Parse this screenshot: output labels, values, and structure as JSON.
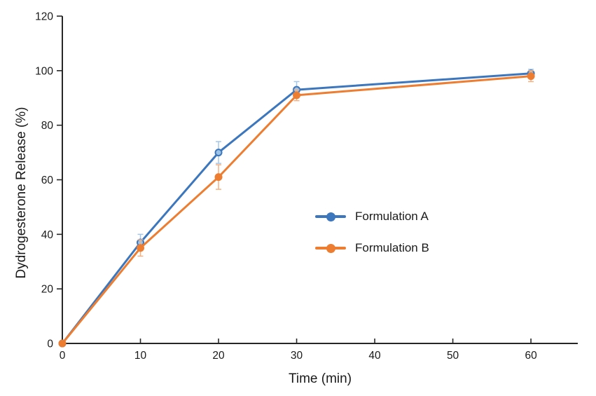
{
  "chart_data": {
    "type": "line",
    "title": "",
    "xlabel": "Time (min)",
    "ylabel": "Dydrogesterone Release (%)",
    "x": [
      0,
      10,
      20,
      30,
      60
    ],
    "xlim": [
      0,
      66
    ],
    "ylim": [
      0,
      120
    ],
    "xticks": [
      0,
      10,
      20,
      30,
      40,
      50,
      60
    ],
    "yticks": [
      0,
      20,
      40,
      60,
      80,
      100,
      120
    ],
    "grid": false,
    "legend_position": "inside-center-right",
    "axis_color": "#262626",
    "text_color": "#1a1a1a",
    "series": [
      {
        "name": "Formulation A",
        "color": "#3C77BE",
        "marker_fill": "#9DC3E6",
        "error_color": "#A5C8EA",
        "marker": "circle",
        "values": [
          0,
          37,
          70,
          93,
          99
        ],
        "errors": [
          0,
          3,
          4,
          3,
          1.5
        ]
      },
      {
        "name": "Formulation B",
        "color": "#ED7D31",
        "marker_fill": "#ED7D31",
        "error_color": "#F4B183",
        "marker": "circle",
        "values": [
          0,
          35,
          61,
          91,
          98
        ],
        "errors": [
          0,
          3,
          4.5,
          2,
          2
        ]
      }
    ]
  }
}
